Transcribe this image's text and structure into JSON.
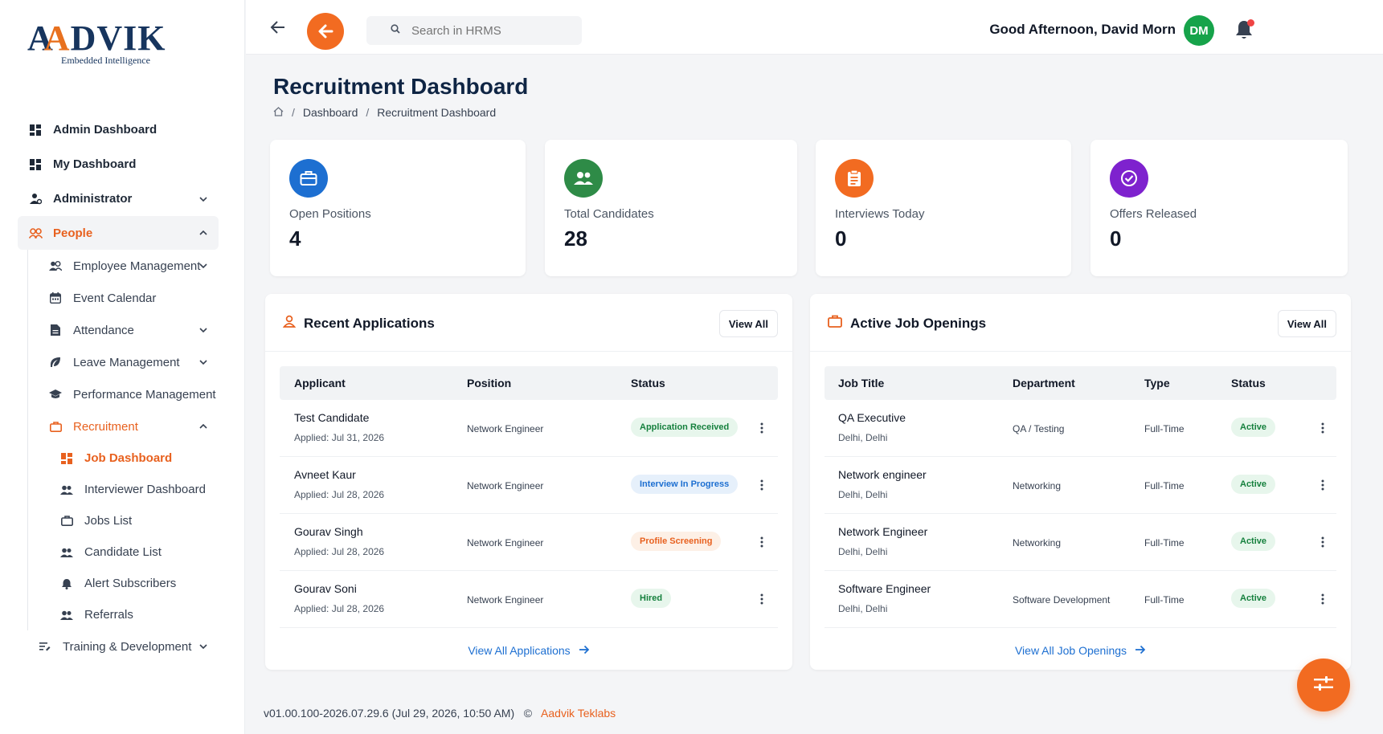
{
  "brand": {
    "logo_text": "AADVIK",
    "tagline": "Embedded Intelligence"
  },
  "sidebar": {
    "items": [
      {
        "label": "Admin Dashboard",
        "icon": "dashboard-icon"
      },
      {
        "label": "My Dashboard",
        "icon": "dashboard-icon"
      },
      {
        "label": "Administrator",
        "icon": "admin-icon",
        "expandable": true
      },
      {
        "label": "People",
        "icon": "people-icon",
        "expanded": true
      }
    ],
    "people_sub": [
      {
        "label": "Employee Management",
        "icon": "users-icon"
      },
      {
        "label": "Event Calendar",
        "icon": "calendar-icon"
      },
      {
        "label": "Attendance",
        "icon": "document-icon"
      },
      {
        "label": "Leave Management",
        "icon": "leaf-icon"
      },
      {
        "label": "Performance Management",
        "icon": "graduation-cap-icon"
      },
      {
        "label": "Recruitment",
        "icon": "briefcase-icon"
      }
    ],
    "recruitment_sub": [
      {
        "label": "Job Dashboard",
        "icon": "dashboard-icon"
      },
      {
        "label": "Interviewer Dashboard",
        "icon": "users-icon"
      },
      {
        "label": "Jobs List",
        "icon": "briefcase-icon"
      },
      {
        "label": "Candidate List",
        "icon": "users-icon"
      },
      {
        "label": "Alert Subscribers",
        "icon": "bell-icon"
      },
      {
        "label": "Referrals",
        "icon": "users-icon"
      }
    ],
    "training": {
      "label": "Training & Development",
      "icon": "list-icon"
    }
  },
  "header": {
    "search_placeholder": "Search in HRMS",
    "greeting": "Good Afternoon, David Morn",
    "avatar_initials": "DM"
  },
  "page": {
    "title": "Recruitment Dashboard",
    "breadcrumb": [
      "Dashboard",
      "Recruitment Dashboard"
    ]
  },
  "stats": [
    {
      "label": "Open Positions",
      "value": "4",
      "color": "#1d6fd1",
      "icon": "briefcase-icon"
    },
    {
      "label": "Total Candidates",
      "value": "28",
      "color": "#2e8b47",
      "icon": "users-icon"
    },
    {
      "label": "Interviews Today",
      "value": "0",
      "color": "#f26b21",
      "icon": "clipboard-icon"
    },
    {
      "label": "Offers Released",
      "value": "0",
      "color": "#7e22ce",
      "icon": "check-circle-icon"
    }
  ],
  "recent_applications": {
    "title": "Recent Applications",
    "view_all": "View All",
    "columns": [
      "Applicant",
      "Position",
      "Status"
    ],
    "rows": [
      {
        "name": "Test Candidate",
        "applied": "Applied: Jul 31, 2026",
        "position": "Network Engineer",
        "status": "Application Received",
        "status_color": "#15803d",
        "status_bg": "#e7f6ec"
      },
      {
        "name": "Avneet Kaur",
        "applied": "Applied: Jul 28, 2026",
        "position": "Network Engineer",
        "status": "Interview In Progress",
        "status_color": "#1d6fd1",
        "status_bg": "#e6f0fb"
      },
      {
        "name": "Gourav Singh",
        "applied": "Applied: Jul 28, 2026",
        "position": "Network Engineer",
        "status": "Profile Screening",
        "status_color": "#e8611f",
        "status_bg": "#fdf0e6"
      },
      {
        "name": "Gourav Soni",
        "applied": "Applied: Jul 28, 2026",
        "position": "Network Engineer",
        "status": "Hired",
        "status_color": "#15803d",
        "status_bg": "#e7f6ec"
      }
    ],
    "footer_link": "View All Applications"
  },
  "active_jobs": {
    "title": "Active Job Openings",
    "view_all": "View All",
    "columns": [
      "Job Title",
      "Department",
      "Type",
      "Status"
    ],
    "rows": [
      {
        "title": "QA Executive",
        "location": "Delhi, Delhi",
        "department": "QA / Testing",
        "type": "Full-Time",
        "status": "Active"
      },
      {
        "title": "Network engineer",
        "location": "Delhi, Delhi",
        "department": "Networking",
        "type": "Full-Time",
        "status": "Active"
      },
      {
        "title": "Network Engineer",
        "location": "Delhi, Delhi",
        "department": "Networking",
        "type": "Full-Time",
        "status": "Active"
      },
      {
        "title": "Software Engineer",
        "location": "Delhi, Delhi",
        "department": "Software Development",
        "type": "Full-Time",
        "status": "Active"
      }
    ],
    "footer_link": "View All Job Openings"
  },
  "footer": {
    "version": "v01.00.100-2026.07.29.6 (Jul 29, 2026, 10:50 AM)",
    "copyright_symbol": "©",
    "company": "Aadvik Teklabs"
  }
}
